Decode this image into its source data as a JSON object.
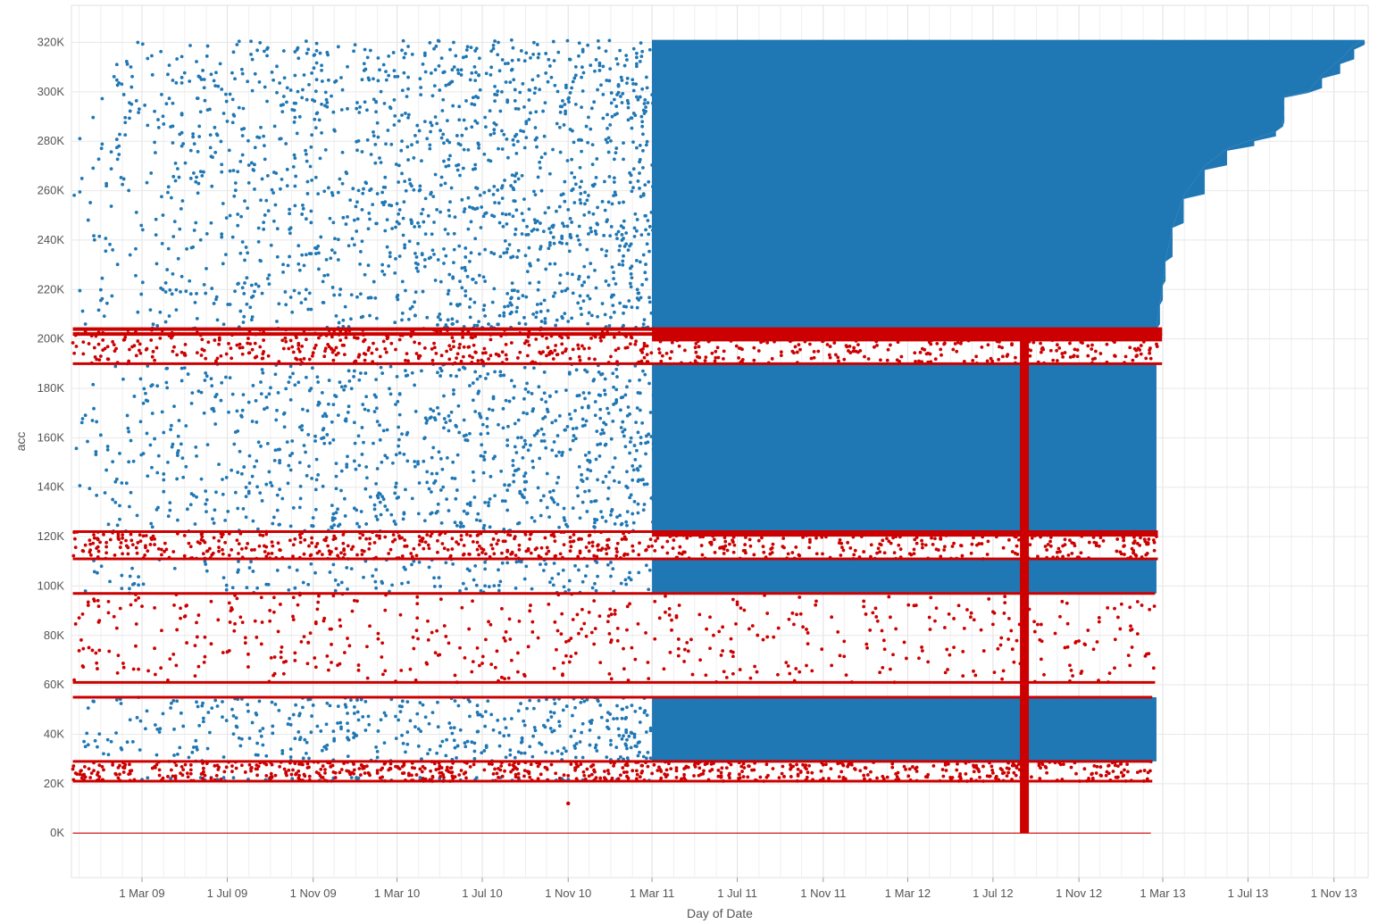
{
  "chart_data": {
    "type": "scatter",
    "xlabel": "Day of Date",
    "ylabel": "acc",
    "xlim": [
      "2008-11-20",
      "2013-12-20"
    ],
    "ylim": [
      -18000,
      335000
    ],
    "grid": true,
    "x_ticks": [
      {
        "date": "2009-03-01",
        "label": "1 Mar 09"
      },
      {
        "date": "2009-07-01",
        "label": "1 Jul 09"
      },
      {
        "date": "2009-11-01",
        "label": "1 Nov 09"
      },
      {
        "date": "2010-03-01",
        "label": "1 Mar 10"
      },
      {
        "date": "2010-07-01",
        "label": "1 Jul 10"
      },
      {
        "date": "2010-11-01",
        "label": "1 Nov 10"
      },
      {
        "date": "2011-03-01",
        "label": "1 Mar 11"
      },
      {
        "date": "2011-07-01",
        "label": "1 Jul 11"
      },
      {
        "date": "2011-11-01",
        "label": "1 Nov 11"
      },
      {
        "date": "2012-03-01",
        "label": "1 Mar 12"
      },
      {
        "date": "2012-07-01",
        "label": "1 Jul 12"
      },
      {
        "date": "2012-11-01",
        "label": "1 Nov 12"
      },
      {
        "date": "2013-03-01",
        "label": "1 Mar 13"
      },
      {
        "date": "2013-07-01",
        "label": "1 Jul 13"
      },
      {
        "date": "2013-11-01",
        "label": "1 Nov 13"
      }
    ],
    "y_ticks": [
      {
        "value": 0,
        "label": "0K"
      },
      {
        "value": 20000,
        "label": "20K"
      },
      {
        "value": 40000,
        "label": "40K"
      },
      {
        "value": 60000,
        "label": "60K"
      },
      {
        "value": 80000,
        "label": "80K"
      },
      {
        "value": 100000,
        "label": "100K"
      },
      {
        "value": 120000,
        "label": "120K"
      },
      {
        "value": 140000,
        "label": "140K"
      },
      {
        "value": 160000,
        "label": "160K"
      },
      {
        "value": 180000,
        "label": "180K"
      },
      {
        "value": 200000,
        "label": "200K"
      },
      {
        "value": 220000,
        "label": "220K"
      },
      {
        "value": 240000,
        "label": "240K"
      },
      {
        "value": 260000,
        "label": "260K"
      },
      {
        "value": 280000,
        "label": "280K"
      },
      {
        "value": 300000,
        "label": "300K"
      },
      {
        "value": 320000,
        "label": "320K"
      }
    ],
    "series": [
      {
        "color": "#1f77b4",
        "value_bands": [
          [
            190000,
            204000
          ],
          [
            111000,
            122000
          ],
          [
            97000,
            111000
          ],
          [
            55000,
            61000
          ],
          [
            29000,
            55000
          ],
          [
            21000,
            29000
          ]
        ],
        "dense_bands": [
          [
            204000,
            321000
          ],
          [
            122000,
            190000
          ],
          [
            97000,
            111000
          ],
          [
            29000,
            55000
          ]
        ],
        "date_range": [
          "2008-11-20",
          "2013-12-20"
        ],
        "upper_envelope": [
          {
            "date": "2013-02-20",
            "acc": 205000
          },
          {
            "date": "2013-02-25",
            "acc": 215000
          },
          {
            "date": "2013-03-01",
            "acc": 222000
          },
          {
            "date": "2013-03-05",
            "acc": 232000
          },
          {
            "date": "2013-03-15",
            "acc": 245000
          },
          {
            "date": "2013-03-31",
            "acc": 258000
          },
          {
            "date": "2013-04-30",
            "acc": 270000
          },
          {
            "date": "2013-06-01",
            "acc": 277000
          },
          {
            "date": "2013-07-10",
            "acc": 281000
          },
          {
            "date": "2013-08-10",
            "acc": 284000
          },
          {
            "date": "2013-08-20",
            "acc": 286000
          },
          {
            "date": "2013-08-22",
            "acc": 298000
          },
          {
            "date": "2013-09-25",
            "acc": 300000
          },
          {
            "date": "2013-10-15",
            "acc": 307000
          },
          {
            "date": "2013-11-10",
            "acc": 313000
          },
          {
            "date": "2013-11-30",
            "acc": 319000
          },
          {
            "date": "2013-12-15",
            "acc": 321000
          }
        ]
      },
      {
        "color": "#cc0000",
        "value_bands": [
          [
            190000,
            204000
          ],
          [
            111000,
            122000
          ],
          [
            61000,
            97000
          ],
          [
            21000,
            29000
          ]
        ],
        "dense_lines": [
          204000,
          202000,
          190000,
          122000,
          111000,
          97000,
          61000,
          55000,
          29000,
          21000,
          0
        ],
        "end_dates": [
          {
            "band": [
              190000,
              204000
            ],
            "end": "2013-02-28"
          },
          {
            "band": [
              111000,
              122000
            ],
            "end": "2013-02-22"
          },
          {
            "band": [
              61000,
              97000
            ],
            "end": "2013-02-18"
          },
          {
            "band": [
              21000,
              29000
            ],
            "end": "2013-02-14"
          }
        ],
        "vertical_bar": {
          "date": "2012-08-15",
          "acc_range": [
            0,
            204000
          ]
        },
        "isolated_points": [
          {
            "date": "2010-11-01",
            "acc": 12000
          }
        ]
      }
    ]
  }
}
